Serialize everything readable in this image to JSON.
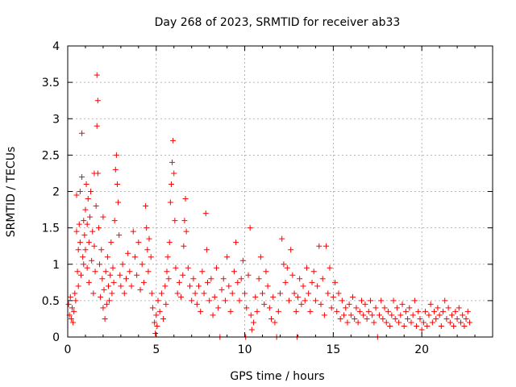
{
  "chart_data": {
    "type": "scatter",
    "title": "Day 268 of 2023, SRMTID for receiver ab33",
    "xlabel": "GPS time / hours",
    "ylabel": "SRMTID / TECUs",
    "xlim": [
      0,
      24
    ],
    "ylim": [
      0,
      4
    ],
    "xticks": [
      0,
      5,
      10,
      15,
      20
    ],
    "yticks": [
      0,
      0.5,
      1,
      1.5,
      2,
      2.5,
      3,
      3.5,
      4
    ],
    "xtick_labels": [
      "0",
      "5",
      "10",
      "15",
      "20"
    ],
    "ytick_labels": [
      "0",
      "0.5",
      "1",
      "1.5",
      "2",
      "2.5",
      "3",
      "3.5",
      "4"
    ],
    "grid": true,
    "marker": "+",
    "color": "#ff0000",
    "series": [
      {
        "name": "SRMTID",
        "points": [
          [
            0.05,
            0.45
          ],
          [
            0.1,
            0.3
          ],
          [
            0.15,
            0.55
          ],
          [
            0.2,
            0.25
          ],
          [
            0.25,
            0.4
          ],
          [
            0.3,
            0.2
          ],
          [
            0.35,
            0.35
          ],
          [
            0.4,
            0.6
          ],
          [
            0.45,
            0.5
          ],
          [
            0.5,
            1.95
          ],
          [
            0.5,
            1.45
          ],
          [
            0.55,
            0.9
          ],
          [
            0.6,
            1.2
          ],
          [
            0.6,
            0.7
          ],
          [
            0.65,
            1.55
          ],
          [
            0.7,
            1.3
          ],
          [
            0.7,
            2.0
          ],
          [
            0.75,
            0.85
          ],
          [
            0.8,
            2.8
          ],
          [
            0.8,
            2.2
          ],
          [
            0.85,
            1.1
          ],
          [
            0.9,
            1.6
          ],
          [
            0.9,
            1.0
          ],
          [
            0.95,
            1.4
          ],
          [
            1.0,
            1.75
          ],
          [
            1.0,
            1.2
          ],
          [
            1.05,
            2.1
          ],
          [
            1.1,
            0.95
          ],
          [
            1.1,
            1.55
          ],
          [
            1.15,
            1.9
          ],
          [
            1.2,
            1.3
          ],
          [
            1.2,
            0.75
          ],
          [
            1.25,
            1.65
          ],
          [
            1.3,
            2.0
          ],
          [
            1.35,
            1.05
          ],
          [
            1.4,
            1.45
          ],
          [
            1.45,
            0.6
          ],
          [
            1.5,
            2.25
          ],
          [
            1.5,
            1.25
          ],
          [
            1.55,
            0.9
          ],
          [
            1.6,
            1.8
          ],
          [
            1.65,
            2.9
          ],
          [
            1.65,
            3.6
          ],
          [
            1.7,
            3.25
          ],
          [
            1.7,
            2.25
          ],
          [
            1.75,
            1.5
          ],
          [
            1.8,
            1.0
          ],
          [
            1.85,
            0.55
          ],
          [
            1.9,
            1.2
          ],
          [
            1.95,
            0.8
          ],
          [
            2.0,
            0.4
          ],
          [
            2.0,
            1.65
          ],
          [
            2.05,
            0.65
          ],
          [
            2.1,
            0.25
          ],
          [
            2.15,
            0.9
          ],
          [
            2.2,
            0.45
          ],
          [
            2.25,
            1.1
          ],
          [
            2.3,
            0.7
          ],
          [
            2.35,
            0.5
          ],
          [
            2.4,
            0.85
          ],
          [
            2.45,
            1.3
          ],
          [
            2.5,
            0.6
          ],
          [
            2.55,
            0.95
          ],
          [
            2.6,
            0.75
          ],
          [
            2.65,
            1.6
          ],
          [
            2.7,
            2.3
          ],
          [
            2.75,
            2.5
          ],
          [
            2.8,
            2.1
          ],
          [
            2.85,
            1.85
          ],
          [
            2.9,
            1.4
          ],
          [
            2.95,
            0.85
          ],
          [
            3.0,
            0.7
          ],
          [
            3.1,
            1.0
          ],
          [
            3.2,
            0.6
          ],
          [
            3.3,
            0.8
          ],
          [
            3.4,
            1.15
          ],
          [
            3.5,
            0.9
          ],
          [
            3.6,
            0.7
          ],
          [
            3.7,
            1.45
          ],
          [
            3.8,
            1.1
          ],
          [
            3.9,
            0.85
          ],
          [
            4.0,
            1.3
          ],
          [
            4.1,
            0.65
          ],
          [
            4.2,
            1.0
          ],
          [
            4.3,
            0.75
          ],
          [
            4.4,
            1.8
          ],
          [
            4.45,
            1.5
          ],
          [
            4.5,
            1.2
          ],
          [
            4.55,
            0.9
          ],
          [
            4.6,
            1.35
          ],
          [
            4.7,
            1.1
          ],
          [
            4.75,
            0.6
          ],
          [
            4.8,
            0.4
          ],
          [
            4.9,
            0.2
          ],
          [
            4.95,
            0.05
          ],
          [
            5.0,
            0.3
          ],
          [
            5.05,
            0.15
          ],
          [
            5.1,
            0.5
          ],
          [
            5.2,
            0.35
          ],
          [
            5.3,
            0.6
          ],
          [
            5.4,
            0.25
          ],
          [
            5.5,
            0.7
          ],
          [
            5.55,
            0.45
          ],
          [
            5.6,
            0.9
          ],
          [
            5.65,
            1.1
          ],
          [
            5.7,
            0.8
          ],
          [
            5.75,
            1.3
          ],
          [
            5.8,
            1.85
          ],
          [
            5.85,
            2.1
          ],
          [
            5.9,
            2.4
          ],
          [
            5.95,
            2.7
          ],
          [
            6.0,
            2.25
          ],
          [
            6.05,
            1.6
          ],
          [
            6.1,
            0.95
          ],
          [
            6.2,
            0.6
          ],
          [
            6.3,
            0.75
          ],
          [
            6.4,
            0.55
          ],
          [
            6.5,
            0.85
          ],
          [
            6.55,
            1.25
          ],
          [
            6.6,
            1.6
          ],
          [
            6.65,
            1.9
          ],
          [
            6.7,
            1.45
          ],
          [
            6.8,
            0.95
          ],
          [
            6.9,
            0.7
          ],
          [
            7.0,
            0.5
          ],
          [
            7.1,
            0.8
          ],
          [
            7.2,
            0.6
          ],
          [
            7.3,
            0.45
          ],
          [
            7.4,
            0.7
          ],
          [
            7.5,
            0.35
          ],
          [
            7.6,
            0.9
          ],
          [
            7.7,
            0.6
          ],
          [
            7.8,
            1.7
          ],
          [
            7.85,
            1.2
          ],
          [
            7.9,
            0.75
          ],
          [
            8.0,
            0.5
          ],
          [
            8.1,
            0.8
          ],
          [
            8.2,
            0.3
          ],
          [
            8.3,
            0.55
          ],
          [
            8.4,
            0.95
          ],
          [
            8.5,
            0.4
          ],
          [
            8.6,
            0.0
          ],
          [
            8.7,
            0.65
          ],
          [
            8.8,
            0.8
          ],
          [
            8.9,
            0.5
          ],
          [
            9.0,
            1.1
          ],
          [
            9.1,
            0.7
          ],
          [
            9.2,
            0.35
          ],
          [
            9.3,
            0.6
          ],
          [
            9.4,
            0.9
          ],
          [
            9.5,
            1.3
          ],
          [
            9.6,
            0.75
          ],
          [
            9.7,
            0.5
          ],
          [
            9.8,
            0.8
          ],
          [
            9.9,
            1.05
          ],
          [
            10.0,
            0.6
          ],
          [
            10.05,
            0.0
          ],
          [
            10.1,
            0.4
          ],
          [
            10.2,
            0.85
          ],
          [
            10.3,
            1.5
          ],
          [
            10.35,
            0.3
          ],
          [
            10.4,
            0.1
          ],
          [
            10.5,
            0.2
          ],
          [
            10.6,
            0.55
          ],
          [
            10.7,
            0.35
          ],
          [
            10.8,
            0.8
          ],
          [
            10.9,
            1.1
          ],
          [
            11.0,
            0.6
          ],
          [
            11.1,
            0.45
          ],
          [
            11.2,
            0.9
          ],
          [
            11.3,
            0.7
          ],
          [
            11.4,
            0.4
          ],
          [
            11.5,
            0.25
          ],
          [
            11.6,
            0.55
          ],
          [
            11.7,
            0.2
          ],
          [
            11.8,
            0.0
          ],
          [
            11.9,
            0.35
          ],
          [
            12.0,
            0.6
          ],
          [
            12.1,
            1.35
          ],
          [
            12.2,
            1.0
          ],
          [
            12.3,
            0.75
          ],
          [
            12.4,
            0.95
          ],
          [
            12.5,
            0.5
          ],
          [
            12.6,
            1.2
          ],
          [
            12.7,
            0.85
          ],
          [
            12.8,
            0.6
          ],
          [
            12.9,
            0.35
          ],
          [
            12.95,
            0.0
          ],
          [
            13.0,
            0.55
          ],
          [
            13.1,
            0.8
          ],
          [
            13.2,
            0.45
          ],
          [
            13.3,
            0.7
          ],
          [
            13.4,
            0.5
          ],
          [
            13.5,
            0.95
          ],
          [
            13.6,
            0.6
          ],
          [
            13.7,
            0.35
          ],
          [
            13.8,
            0.75
          ],
          [
            13.9,
            0.9
          ],
          [
            14.0,
            0.5
          ],
          [
            14.1,
            0.7
          ],
          [
            14.2,
            1.25
          ],
          [
            14.3,
            0.45
          ],
          [
            14.4,
            0.8
          ],
          [
            14.5,
            0.3
          ],
          [
            14.6,
            1.25
          ],
          [
            14.7,
            0.6
          ],
          [
            14.8,
            0.95
          ],
          [
            14.9,
            0.4
          ],
          [
            15.0,
            0.55
          ],
          [
            15.1,
            0.75
          ],
          [
            15.2,
            0.35
          ],
          [
            15.3,
            0.6
          ],
          [
            15.4,
            0.25
          ],
          [
            15.5,
            0.5
          ],
          [
            15.6,
            0.3
          ],
          [
            15.7,
            0.4
          ],
          [
            15.8,
            0.2
          ],
          [
            15.9,
            0.45
          ],
          [
            16.0,
            0.3
          ],
          [
            16.1,
            0.55
          ],
          [
            16.2,
            0.25
          ],
          [
            16.3,
            0.4
          ],
          [
            16.4,
            0.2
          ],
          [
            16.5,
            0.35
          ],
          [
            16.6,
            0.5
          ],
          [
            16.7,
            0.3
          ],
          [
            16.8,
            0.45
          ],
          [
            16.9,
            0.25
          ],
          [
            17.0,
            0.35
          ],
          [
            17.1,
            0.5
          ],
          [
            17.2,
            0.3
          ],
          [
            17.3,
            0.2
          ],
          [
            17.4,
            0.4
          ],
          [
            17.5,
            0.0
          ],
          [
            17.6,
            0.3
          ],
          [
            17.7,
            0.5
          ],
          [
            17.8,
            0.25
          ],
          [
            17.9,
            0.4
          ],
          [
            18.0,
            0.2
          ],
          [
            18.1,
            0.35
          ],
          [
            18.2,
            0.15
          ],
          [
            18.3,
            0.3
          ],
          [
            18.4,
            0.5
          ],
          [
            18.5,
            0.25
          ],
          [
            18.6,
            0.4
          ],
          [
            18.7,
            0.2
          ],
          [
            18.8,
            0.3
          ],
          [
            18.9,
            0.45
          ],
          [
            19.0,
            0.15
          ],
          [
            19.1,
            0.35
          ],
          [
            19.2,
            0.25
          ],
          [
            19.3,
            0.4
          ],
          [
            19.4,
            0.2
          ],
          [
            19.5,
            0.3
          ],
          [
            19.6,
            0.5
          ],
          [
            19.7,
            0.15
          ],
          [
            19.8,
            0.35
          ],
          [
            19.9,
            0.25
          ],
          [
            20.0,
            0.1
          ],
          [
            20.1,
            0.2
          ],
          [
            20.2,
            0.35
          ],
          [
            20.3,
            0.15
          ],
          [
            20.4,
            0.3
          ],
          [
            20.5,
            0.45
          ],
          [
            20.6,
            0.2
          ],
          [
            20.7,
            0.35
          ],
          [
            20.8,
            0.25
          ],
          [
            20.9,
            0.4
          ],
          [
            21.0,
            0.3
          ],
          [
            21.1,
            0.15
          ],
          [
            21.2,
            0.35
          ],
          [
            21.3,
            0.5
          ],
          [
            21.4,
            0.25
          ],
          [
            21.5,
            0.4
          ],
          [
            21.6,
            0.2
          ],
          [
            21.7,
            0.3
          ],
          [
            21.8,
            0.15
          ],
          [
            21.9,
            0.35
          ],
          [
            22.0,
            0.25
          ],
          [
            22.1,
            0.4
          ],
          [
            22.2,
            0.2
          ],
          [
            22.3,
            0.3
          ],
          [
            22.4,
            0.15
          ],
          [
            22.5,
            0.25
          ],
          [
            22.6,
            0.35
          ],
          [
            22.7,
            0.2
          ]
        ]
      }
    ]
  }
}
